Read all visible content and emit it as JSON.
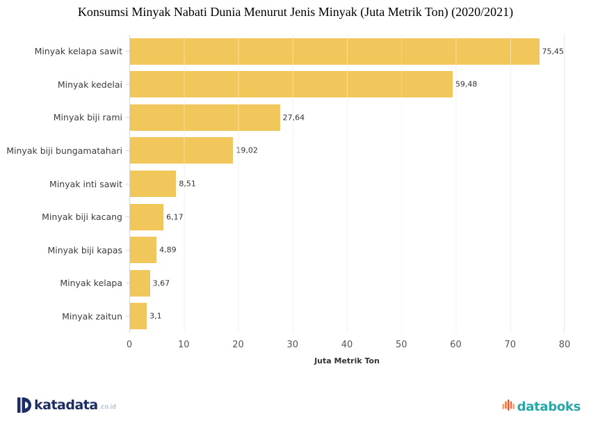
{
  "chart_data": {
    "type": "bar",
    "orientation": "horizontal",
    "title": "Konsumsi Minyak Nabati Dunia Menurut Jenis Minyak (Juta Metrik Ton) (2020/2021)",
    "categories": [
      "Minyak kelapa sawit",
      "Minyak kedelai",
      "Minyak biji rami",
      "Minyak biji bungamatahari",
      "Minyak inti sawit",
      "Minyak biji kacang",
      "Minyak biji kapas",
      "Minyak kelapa",
      "Minyak zaitun"
    ],
    "values": [
      75.45,
      59.48,
      27.64,
      19.02,
      8.51,
      6.17,
      4.89,
      3.67,
      3.1
    ],
    "value_labels": [
      "75,45",
      "59,48",
      "27,64",
      "19,02",
      "8,51",
      "6,17",
      "4,89",
      "3,67",
      "3,1"
    ],
    "xlabel": "Juta Metrik Ton",
    "xlim": [
      0,
      80
    ],
    "x_ticks": [
      "0",
      "10",
      "20",
      "30",
      "40",
      "50",
      "60",
      "70",
      "80"
    ],
    "grid": true,
    "legend": "none",
    "bar_color": "#F1C65A",
    "gridline_color": "#e6e6e6",
    "axis_line_color": "#d4d4d4"
  },
  "footer": {
    "katadata_brand": "katadata",
    "katadata_suffix": ".co.id",
    "katadata_color": "#1b2d64",
    "databoks_brand": "databoks",
    "databoks_color": "#2aa6a6"
  }
}
